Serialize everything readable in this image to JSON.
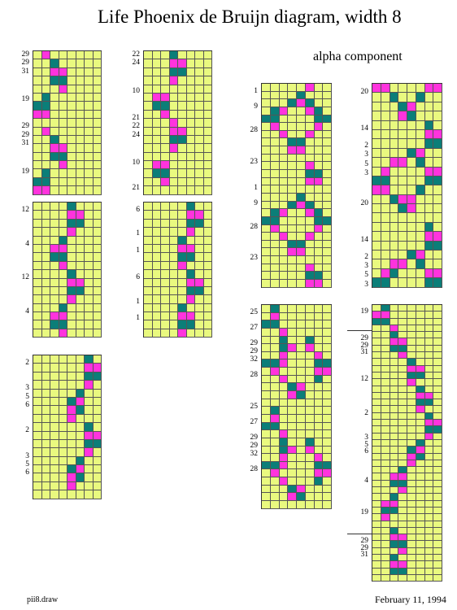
{
  "header": {
    "title": "Life Phoenix de Bruijn diagram, width 8",
    "subtitle": "alpha component"
  },
  "footer": {
    "left_text": "pii8.draw",
    "right_text": "February 11, 1994"
  },
  "colors": {
    "grid_background": "#e9f97f",
    "magenta_cell": "#ff33dd",
    "teal_cell": "#0b7e78",
    "grid_line": "#555555"
  },
  "grid_columns": 8,
  "legend_codes": {
    "0": "empty",
    "1": "magenta",
    "2": "teal"
  },
  "panels": [
    {
      "id": "panel-1",
      "labels": [
        "29",
        "29",
        "31",
        "19",
        "29",
        "29",
        "31",
        "19"
      ],
      "rows": [
        "01000000",
        "00200000",
        "00110000",
        "00220000",
        "00010000",
        "02000000",
        "22000000",
        "11000000",
        "00000000",
        "01000000",
        "00200000",
        "00110000",
        "00220000",
        "00010000",
        "02000000",
        "22000000",
        "11000000"
      ]
    },
    {
      "id": "panel-2",
      "labels": [
        "22",
        "24",
        "10",
        "21",
        "22",
        "24",
        "10",
        "21"
      ],
      "rows": [
        "00020000",
        "00011000",
        "00022000",
        "00010000",
        "00000000",
        "01100000",
        "02200000",
        "00100000",
        "00010000",
        "00011000",
        "00022000",
        "00010000",
        "00000000",
        "01100000",
        "02200000",
        "00100000",
        "00000000"
      ]
    },
    {
      "id": "panel-3",
      "labels": [
        "12",
        "4",
        "12",
        "4"
      ],
      "rows": [
        "00002000",
        "00001100",
        "00002200",
        "00001000",
        "00020000",
        "00110000",
        "00220000",
        "00010000",
        "00002000",
        "00001100",
        "00002200",
        "00001000",
        "00020000",
        "00110000",
        "00220000",
        "00010000"
      ]
    },
    {
      "id": "panel-4",
      "labels": [
        "6",
        "1",
        "1",
        "6",
        "1",
        "1"
      ],
      "rows": [
        "00000200",
        "00000110",
        "00000220",
        "00000100",
        "00002000",
        "00001100",
        "00002200",
        "00001000",
        "00000200",
        "00000110",
        "00000220",
        "00000100",
        "00002000",
        "00001100",
        "00002200",
        "00001000"
      ]
    },
    {
      "id": "panel-5",
      "labels": [
        "2",
        "3",
        "5",
        "6",
        "2",
        "3",
        "5",
        "6"
      ],
      "rows": [
        "00000020",
        "00000011",
        "00000022",
        "00000010",
        "00000200",
        "00002100",
        "00001200",
        "00001000",
        "00000020",
        "00000011",
        "00000022",
        "00000010",
        "00000200",
        "00002100",
        "00001200",
        "00001000",
        "00000000"
      ]
    },
    {
      "id": "panel-6",
      "labels": [
        "1",
        "9",
        "28",
        "23",
        "1",
        "9",
        "28",
        "23"
      ],
      "rows": [
        "00000100",
        "00002000",
        "00021200",
        "02100120",
        "22000022",
        "01000010",
        "00100100",
        "00022000",
        "00011000",
        "00000000",
        "00000100",
        "00000220",
        "00000110",
        "00000000",
        "00002000",
        "00021200",
        "02100120",
        "22000022",
        "01000010",
        "00100100",
        "00022000",
        "00011000",
        "00000000",
        "00000100",
        "00000220",
        "00000110"
      ]
    },
    {
      "id": "panel-7",
      "labels": [
        "20",
        "14",
        "2",
        "3",
        "5",
        "3",
        "20",
        "14",
        "2",
        "3",
        "5",
        "3"
      ],
      "rows": [
        "11000011",
        "00200200",
        "00021000",
        "00012000",
        "00000020",
        "00000011",
        "00000022",
        "00002100",
        "00110200",
        "01000011",
        "22000022",
        "11000200",
        "00211000",
        "00021000",
        "00000000",
        "00000020",
        "00000011",
        "00000022",
        "00002100",
        "00110200",
        "01200011",
        "22000022"
      ]
    },
    {
      "id": "panel-8",
      "labels": [
        "25",
        "27",
        "29",
        "29",
        "32",
        "28",
        "25",
        "27",
        "29",
        "29",
        "32",
        "28"
      ],
      "rows": [
        "02000000",
        "01000000",
        "22000000",
        "00100000",
        "00200200",
        "00210100",
        "00100010",
        "22100022",
        "01000011",
        "00100020",
        "00021000",
        "00012000",
        "00000000",
        "02000000",
        "01000000",
        "22000000",
        "00100000",
        "00200200",
        "00210100",
        "00100010",
        "22100022",
        "01000011",
        "00100020",
        "00021000",
        "00012000",
        "00000000"
      ]
    },
    {
      "id": "panel-9",
      "labels": [
        "19",
        "29",
        "29",
        "31",
        "12",
        "2",
        "3",
        "5",
        "6",
        "4",
        "19",
        "29",
        "29",
        "31"
      ],
      "rows": [
        "02000000",
        "11000000",
        "22000000",
        "00100000",
        "00200000",
        "00110000",
        "00220000",
        "00010000",
        "00002000",
        "00001100",
        "00002200",
        "00001000",
        "00000200",
        "00000110",
        "00000220",
        "00000100",
        "00000020",
        "00000011",
        "00000022",
        "00000010",
        "00000200",
        "00002100",
        "00001200",
        "00001000",
        "00020000",
        "00110000",
        "00220000",
        "00010000",
        "00200000",
        "01100000",
        "02200000",
        "01000000",
        "00000000",
        "00200000",
        "00110000",
        "00220000",
        "00010000",
        "00200000",
        "00110000",
        "00220000",
        "00000000"
      ]
    }
  ]
}
